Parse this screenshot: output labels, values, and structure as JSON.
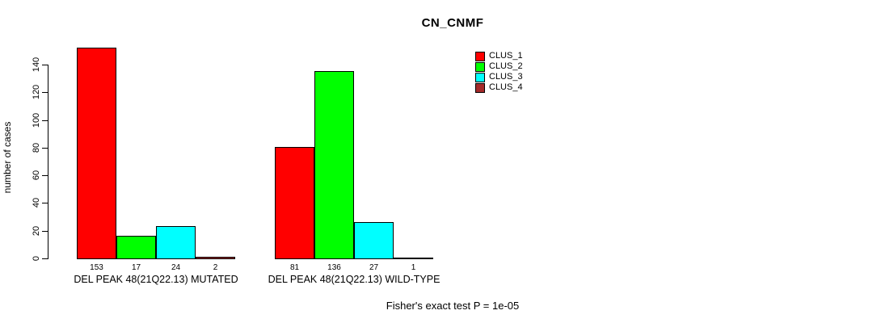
{
  "title": "CN_CNMF",
  "footer": "Fisher's exact test P = 1e-05",
  "colors": {
    "background": "#FFFFFF",
    "axis": "#000000",
    "text": "#000000"
  },
  "chart_data": {
    "type": "bar",
    "title": "CN_CNMF",
    "xlabel": "",
    "ylabel": "number of cases",
    "ylim": [
      0,
      140
    ],
    "yticks": [
      0,
      20,
      40,
      60,
      80,
      100,
      120,
      140
    ],
    "grid": false,
    "legend_position": "top-right",
    "bar_value_labels": true,
    "categories": [
      "DEL PEAK 48(21Q22.13) MUTATED",
      "DEL PEAK 48(21Q22.13) WILD-TYPE"
    ],
    "series": [
      {
        "name": "CLUS_1",
        "color": "#FF0000",
        "values": [
          153,
          81
        ]
      },
      {
        "name": "CLUS_2",
        "color": "#00FF00",
        "values": [
          17,
          136
        ]
      },
      {
        "name": "CLUS_3",
        "color": "#00FFFF",
        "values": [
          24,
          27
        ]
      },
      {
        "name": "CLUS_4",
        "color": "#A52A2A",
        "values": [
          2,
          1
        ]
      }
    ],
    "annotation": "Fisher's exact test P = 1e-05"
  }
}
